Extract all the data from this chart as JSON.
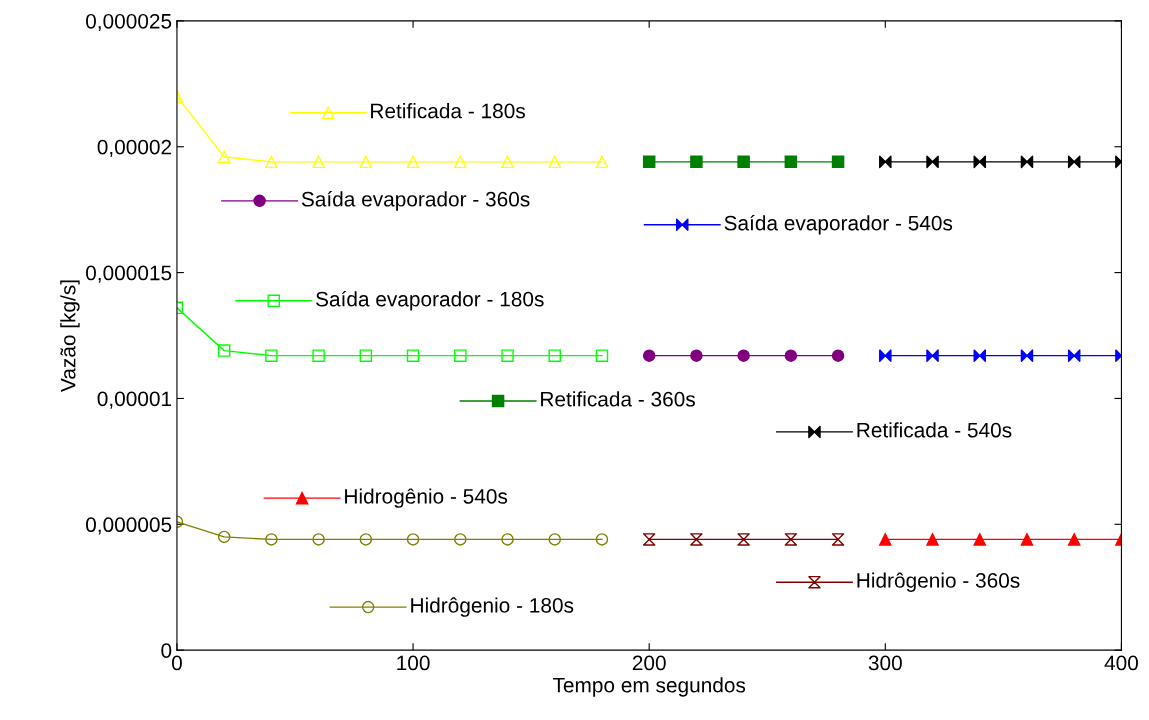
{
  "chart_data": {
    "type": "line",
    "xlabel": "Tempo em segundos",
    "ylabel": "Vazão [kg/s]",
    "xlim": [
      0,
      400
    ],
    "xticks": [
      0,
      100,
      200,
      300,
      400
    ],
    "ylim": [
      0,
      2.5e-05
    ],
    "yticks": [
      {
        "value": 0,
        "label": "0"
      },
      {
        "value": 5e-06,
        "label": "0,000005"
      },
      {
        "value": 1e-05,
        "label": "0,00001"
      },
      {
        "value": 1.5e-05,
        "label": "0,000015"
      },
      {
        "value": 2e-05,
        "label": "0,00002"
      },
      {
        "value": 2.5e-05,
        "label": "0,000025"
      }
    ],
    "grid": false,
    "legend": "bottom left",
    "series": [
      {
        "name": "Retificada - 180s",
        "color": "#ffff00",
        "marker": "triangle",
        "x": [
          0,
          20,
          40,
          60,
          80,
          100,
          120,
          140,
          160,
          180
        ],
        "values": [
          2.2e-05,
          1.96e-05,
          1.94e-05,
          1.94e-05,
          1.94e-05,
          1.94e-05,
          1.94e-05,
          1.94e-05,
          1.94e-05,
          1.94e-05
        ]
      },
      {
        "name": "Saída evaporador - 360s",
        "color": "#800080",
        "marker": "circle",
        "x": [
          200,
          220,
          240,
          260,
          280
        ],
        "values": [
          1.17e-05,
          1.17e-05,
          1.17e-05,
          1.17e-05,
          1.17e-05
        ]
      },
      {
        "name": "Saída evaporador - 540s",
        "color": "#0000ff",
        "marker": "triangle",
        "x": [
          300,
          320,
          340,
          360,
          380,
          400
        ],
        "values": [
          1.17e-05,
          1.17e-05,
          1.17e-05,
          1.17e-05,
          1.17e-05,
          1.17e-05
        ]
      },
      {
        "name": "Saída evaporador - 180s",
        "color": "#00ff00",
        "marker": "square",
        "x": [
          0,
          20,
          40,
          60,
          80,
          100,
          120,
          140,
          160,
          180
        ],
        "values": [
          1.36e-05,
          1.19e-05,
          1.17e-05,
          1.17e-05,
          1.17e-05,
          1.17e-05,
          1.17e-05,
          1.17e-05,
          1.17e-05,
          1.17e-05
        ]
      },
      {
        "name": "Retificada - 360s",
        "color": "#008000",
        "marker": "square",
        "x": [
          200,
          220,
          240,
          260,
          280
        ],
        "values": [
          1.94e-05,
          1.94e-05,
          1.94e-05,
          1.94e-05,
          1.94e-05
        ]
      },
      {
        "name": "Retificada - 540s",
        "color": "#000000",
        "marker": "triangle",
        "x": [
          300,
          320,
          340,
          360,
          380,
          400
        ],
        "values": [
          1.94e-05,
          1.94e-05,
          1.94e-05,
          1.94e-05,
          1.94e-05,
          1.94e-05
        ]
      },
      {
        "name": "Hidrogênio - 540s",
        "color": "#ff0000",
        "marker": "triangle",
        "x": [
          300,
          320,
          340,
          360,
          380,
          400
        ],
        "values": [
          4.4e-06,
          4.4e-06,
          4.4e-06,
          4.4e-06,
          4.4e-06,
          4.4e-06
        ]
      },
      {
        "name": "Hidrôgenio - 360s",
        "color": "#800000",
        "marker": "triangle",
        "x": [
          200,
          220,
          240,
          260,
          280
        ],
        "values": [
          4.4e-06,
          4.4e-06,
          4.4e-06,
          4.4e-06,
          4.4e-06
        ]
      },
      {
        "name": "Hidrôgenio - 180s",
        "color": "#808000",
        "marker": "circle",
        "x": [
          0,
          20,
          40,
          60,
          80,
          100,
          120,
          140,
          160,
          180
        ],
        "values": [
          5.1e-06,
          4.5e-06,
          4.4e-06,
          4.4e-06,
          4.4e-06,
          4.4e-06,
          4.4e-06,
          4.4e-06,
          4.4e-06,
          4.4e-06
        ]
      }
    ]
  }
}
